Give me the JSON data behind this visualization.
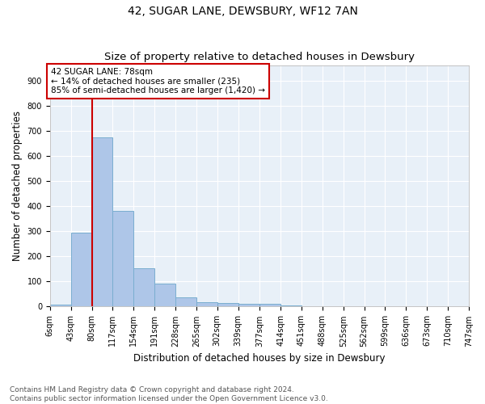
{
  "title": "42, SUGAR LANE, DEWSBURY, WF12 7AN",
  "subtitle": "Size of property relative to detached houses in Dewsbury",
  "xlabel": "Distribution of detached houses by size in Dewsbury",
  "ylabel": "Number of detached properties",
  "bar_values": [
    8,
    295,
    675,
    380,
    153,
    90,
    38,
    18,
    13,
    12,
    10,
    5,
    0,
    0,
    0,
    0,
    0,
    0,
    0,
    0
  ],
  "bin_edges": [
    6,
    43,
    80,
    117,
    154,
    191,
    228,
    265,
    302,
    339,
    377,
    414,
    451,
    488,
    525,
    562,
    599,
    636,
    673,
    710,
    747
  ],
  "tick_labels": [
    "6sqm",
    "43sqm",
    "80sqm",
    "117sqm",
    "154sqm",
    "191sqm",
    "228sqm",
    "265sqm",
    "302sqm",
    "339sqm",
    "377sqm",
    "414sqm",
    "451sqm",
    "488sqm",
    "525sqm",
    "562sqm",
    "599sqm",
    "636sqm",
    "673sqm",
    "710sqm",
    "747sqm"
  ],
  "bar_color": "#aec6e8",
  "bar_edge_color": "#7aaed0",
  "bar_linewidth": 0.7,
  "vline_x": 80,
  "vline_color": "#cc0000",
  "annotation_text": "42 SUGAR LANE: 78sqm\n← 14% of detached houses are smaller (235)\n85% of semi-detached houses are larger (1,420) →",
  "annotation_box_color": "#ffffff",
  "annotation_box_edge": "#cc0000",
  "ylim": [
    0,
    960
  ],
  "yticks": [
    0,
    100,
    200,
    300,
    400,
    500,
    600,
    700,
    800,
    900
  ],
  "bg_color": "#e8f0f8",
  "grid_color": "#ffffff",
  "footer_line1": "Contains HM Land Registry data © Crown copyright and database right 2024.",
  "footer_line2": "Contains public sector information licensed under the Open Government Licence v3.0.",
  "title_fontsize": 10,
  "subtitle_fontsize": 9.5,
  "xlabel_fontsize": 8.5,
  "ylabel_fontsize": 8.5,
  "tick_fontsize": 7,
  "annotation_fontsize": 7.5,
  "footer_fontsize": 6.5
}
